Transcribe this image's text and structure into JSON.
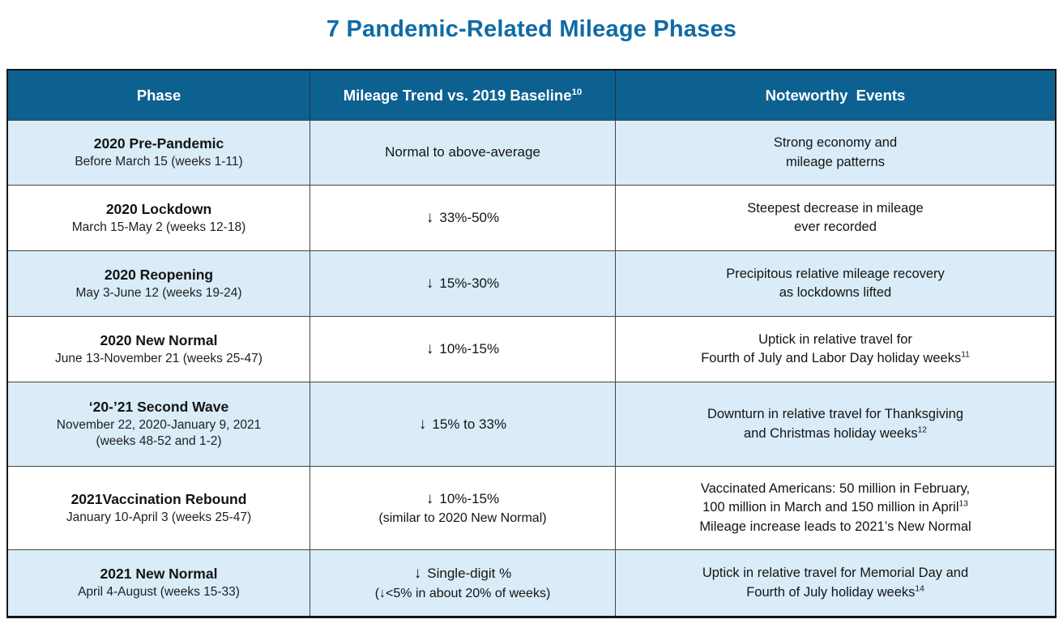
{
  "title": "7 Pandemic-Related Mileage Phases",
  "colors": {
    "title_blue": "#0F6BA4",
    "header_bg": "#0D6191",
    "header_text": "#FFFFFF",
    "row_alt_blue": "#D9ECF8",
    "row_white": "#FFFFFF",
    "body_text": "#141414",
    "grid_line": "#454545",
    "outer_border": "#161616"
  },
  "table": {
    "headers": {
      "phase": "Phase",
      "trend": "Mileage Trend vs. 2019 Baseline",
      "trend_sup": "10",
      "events": "Noteworthy  Events"
    },
    "rows": [
      {
        "phase": {
          "name": "2020 Pre-Pandemic",
          "dates": "Before March 15 (weeks 1-11)"
        },
        "trend": {
          "main": "Normal to above-average"
        },
        "events": {
          "line1": "Strong economy and",
          "line2": "mileage patterns"
        }
      },
      {
        "phase": {
          "name": "2020 Lockdown",
          "dates": "March 15-May 2 (weeks 12-18)"
        },
        "trend": {
          "arrow": "↓",
          "main": "33%-50%"
        },
        "events": {
          "line1": "Steepest decrease in mileage",
          "line2": "ever recorded"
        }
      },
      {
        "phase": {
          "name": "2020 Reopening",
          "dates": "May 3-June 12 (weeks 19-24)"
        },
        "trend": {
          "arrow": "↓",
          "main": "15%-30%"
        },
        "events": {
          "line1": "Precipitous relative mileage recovery",
          "line2": "as lockdowns lifted"
        }
      },
      {
        "phase": {
          "name": "2020 New Normal",
          "dates": "June 13-November 21 (weeks 25-47)"
        },
        "trend": {
          "arrow": "↓",
          "main": "10%-15%"
        },
        "events": {
          "line1": "Uptick in relative travel for",
          "line2": "Fourth of July and Labor Day holiday weeks",
          "line2_sup": "11"
        }
      },
      {
        "phase": {
          "name": "‘20-’21 Second Wave",
          "dates": "November 22, 2020-January 9, 2021",
          "dates2": "(weeks 48-52 and 1-2)"
        },
        "trend": {
          "arrow": "↓",
          "main": "15% to 33%"
        },
        "events": {
          "line1": "Downturn in relative travel for Thanksgiving",
          "line2": "and Christmas holiday weeks",
          "line2_sup": "12"
        }
      },
      {
        "phase": {
          "name": "2021Vaccination Rebound",
          "dates": "January 10-April 3 (weeks 25-47)"
        },
        "trend": {
          "arrow": "↓",
          "main": "10%-15%",
          "note": "(similar to 2020 New Normal)"
        },
        "events": {
          "line1": "Vaccinated Americans: 50 million in February,",
          "line2": "100 million in March and 150 million in April",
          "line2_sup": "13",
          "line3": "Mileage increase leads to 2021’s New Normal"
        }
      },
      {
        "phase": {
          "name": "2021 New Normal",
          "dates": "April 4-August (weeks 15-33)"
        },
        "trend": {
          "arrow": "↓",
          "main": "Single-digit %",
          "note": "(↓<5% in about 20% of weeks)"
        },
        "events": {
          "line1": "Uptick in relative travel for Memorial Day and",
          "line2": "Fourth of July holiday weeks",
          "line2_sup": "14"
        }
      }
    ]
  },
  "chart_data": {
    "type": "table",
    "title": "7 Pandemic-Related Mileage Phases",
    "columns": [
      "Phase",
      "Mileage Trend vs. 2019 Baseline¹⁰",
      "Noteworthy  Events"
    ],
    "rows": [
      [
        "2020 Pre-Pandemic — Before March 15 (weeks 1-11)",
        "Normal to above-average",
        "Strong economy and mileage patterns"
      ],
      [
        "2020 Lockdown — March 15-May 2 (weeks 12-18)",
        "↓ 33%-50%",
        "Steepest decrease in mileage ever recorded"
      ],
      [
        "2020 Reopening — May 3-June 12 (weeks 19-24)",
        "↓ 15%-30%",
        "Precipitous relative mileage recovery as lockdowns lifted"
      ],
      [
        "2020 New Normal — June 13-November 21 (weeks 25-47)",
        "↓ 10%-15%",
        "Uptick in relative travel for Fourth of July and Labor Day holiday weeks¹¹"
      ],
      [
        "‘20-’21 Second Wave — November 22, 2020-January 9, 2021 (weeks 48-52 and 1-2)",
        "↓ 15% to 33%",
        "Downturn in relative travel for Thanksgiving and Christmas holiday weeks¹²"
      ],
      [
        "2021Vaccination Rebound — January 10-April 3 (weeks 25-47)",
        "↓ 10%-15% (similar to 2020 New Normal)",
        "Vaccinated Americans: 50 million in February, 100 million in March and 150 million in April¹³ Mileage increase leads to 2021’s New Normal"
      ],
      [
        "2021 New Normal — April 4-August (weeks 15-33)",
        "↓ Single-digit % (↓<5% in about 20% of weeks)",
        "Uptick in relative travel for Memorial Day and Fourth of July holiday weeks¹⁴"
      ]
    ]
  }
}
